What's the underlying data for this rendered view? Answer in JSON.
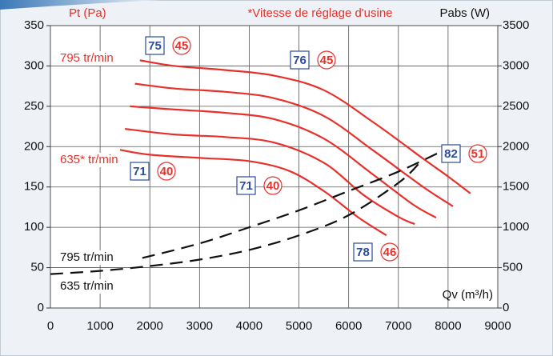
{
  "chart_data": {
    "type": "line",
    "subtitle": "*Vitesse de réglage d'usine",
    "y_label": "Pt (Pa)",
    "y2_label": "Pabs (W)",
    "x_label": "Qv (m³/h)",
    "xlim": [
      0,
      9000
    ],
    "xticks": [
      0,
      1000,
      2000,
      3000,
      4000,
      5000,
      6000,
      7000,
      8000,
      9000
    ],
    "ylim": [
      0,
      350
    ],
    "yticks": [
      0,
      50,
      100,
      150,
      200,
      250,
      300,
      350
    ],
    "y2lim": [
      0,
      3500
    ],
    "y2ticks": [
      0,
      500,
      1000,
      1500,
      2000,
      2500,
      3000,
      3500
    ],
    "grid": true,
    "series": [
      {
        "name": "795 tr/min",
        "color": "#e8302a",
        "x": [
          1800,
          2500,
          3500,
          4500,
          5500,
          6500,
          7500,
          8000,
          8450
        ],
        "values": [
          307,
          300,
          295,
          288,
          270,
          230,
          185,
          163,
          142
        ]
      },
      {
        "color": "#e8302a",
        "x": [
          1700,
          2500,
          3500,
          4500,
          5500,
          6500,
          7500,
          8100
        ],
        "values": [
          278,
          272,
          268,
          260,
          238,
          195,
          150,
          126
        ]
      },
      {
        "color": "#e8302a",
        "x": [
          1600,
          2500,
          3500,
          4500,
          5500,
          6500,
          7300,
          7760
        ],
        "values": [
          250,
          246,
          242,
          234,
          210,
          165,
          128,
          112
        ]
      },
      {
        "color": "#e8302a",
        "x": [
          1500,
          2500,
          3500,
          4500,
          5500,
          6300,
          7000,
          7330
        ],
        "values": [
          222,
          215,
          212,
          205,
          180,
          140,
          113,
          104
        ]
      },
      {
        "name": "635* tr/min",
        "color": "#e8302a",
        "x": [
          1400,
          2000,
          3000,
          4000,
          4800,
          5500,
          6200,
          6760
        ],
        "values": [
          196,
          190,
          186,
          182,
          170,
          145,
          112,
          90
        ]
      },
      {
        "name": "795 tr/min",
        "color": "#111111",
        "axis": "y2",
        "dashed": true,
        "x": [
          1850,
          3000,
          4000,
          5000,
          6000,
          7000,
          7900
        ],
        "values": [
          620,
          800,
          1000,
          1210,
          1450,
          1690,
          1950
        ]
      },
      {
        "name": "635 tr/min",
        "color": "#111111",
        "axis": "y2",
        "dashed": true,
        "x": [
          0,
          1000,
          2000,
          3000,
          4000,
          5000,
          6000,
          7000,
          7400
        ],
        "values": [
          420,
          460,
          520,
          600,
          720,
          900,
          1150,
          1550,
          1780
        ]
      }
    ],
    "badges": [
      [
        75,
        45
      ],
      [
        76,
        45
      ],
      [
        71,
        40
      ],
      [
        71,
        40
      ],
      [
        78,
        46
      ],
      [
        82,
        51
      ]
    ]
  }
}
